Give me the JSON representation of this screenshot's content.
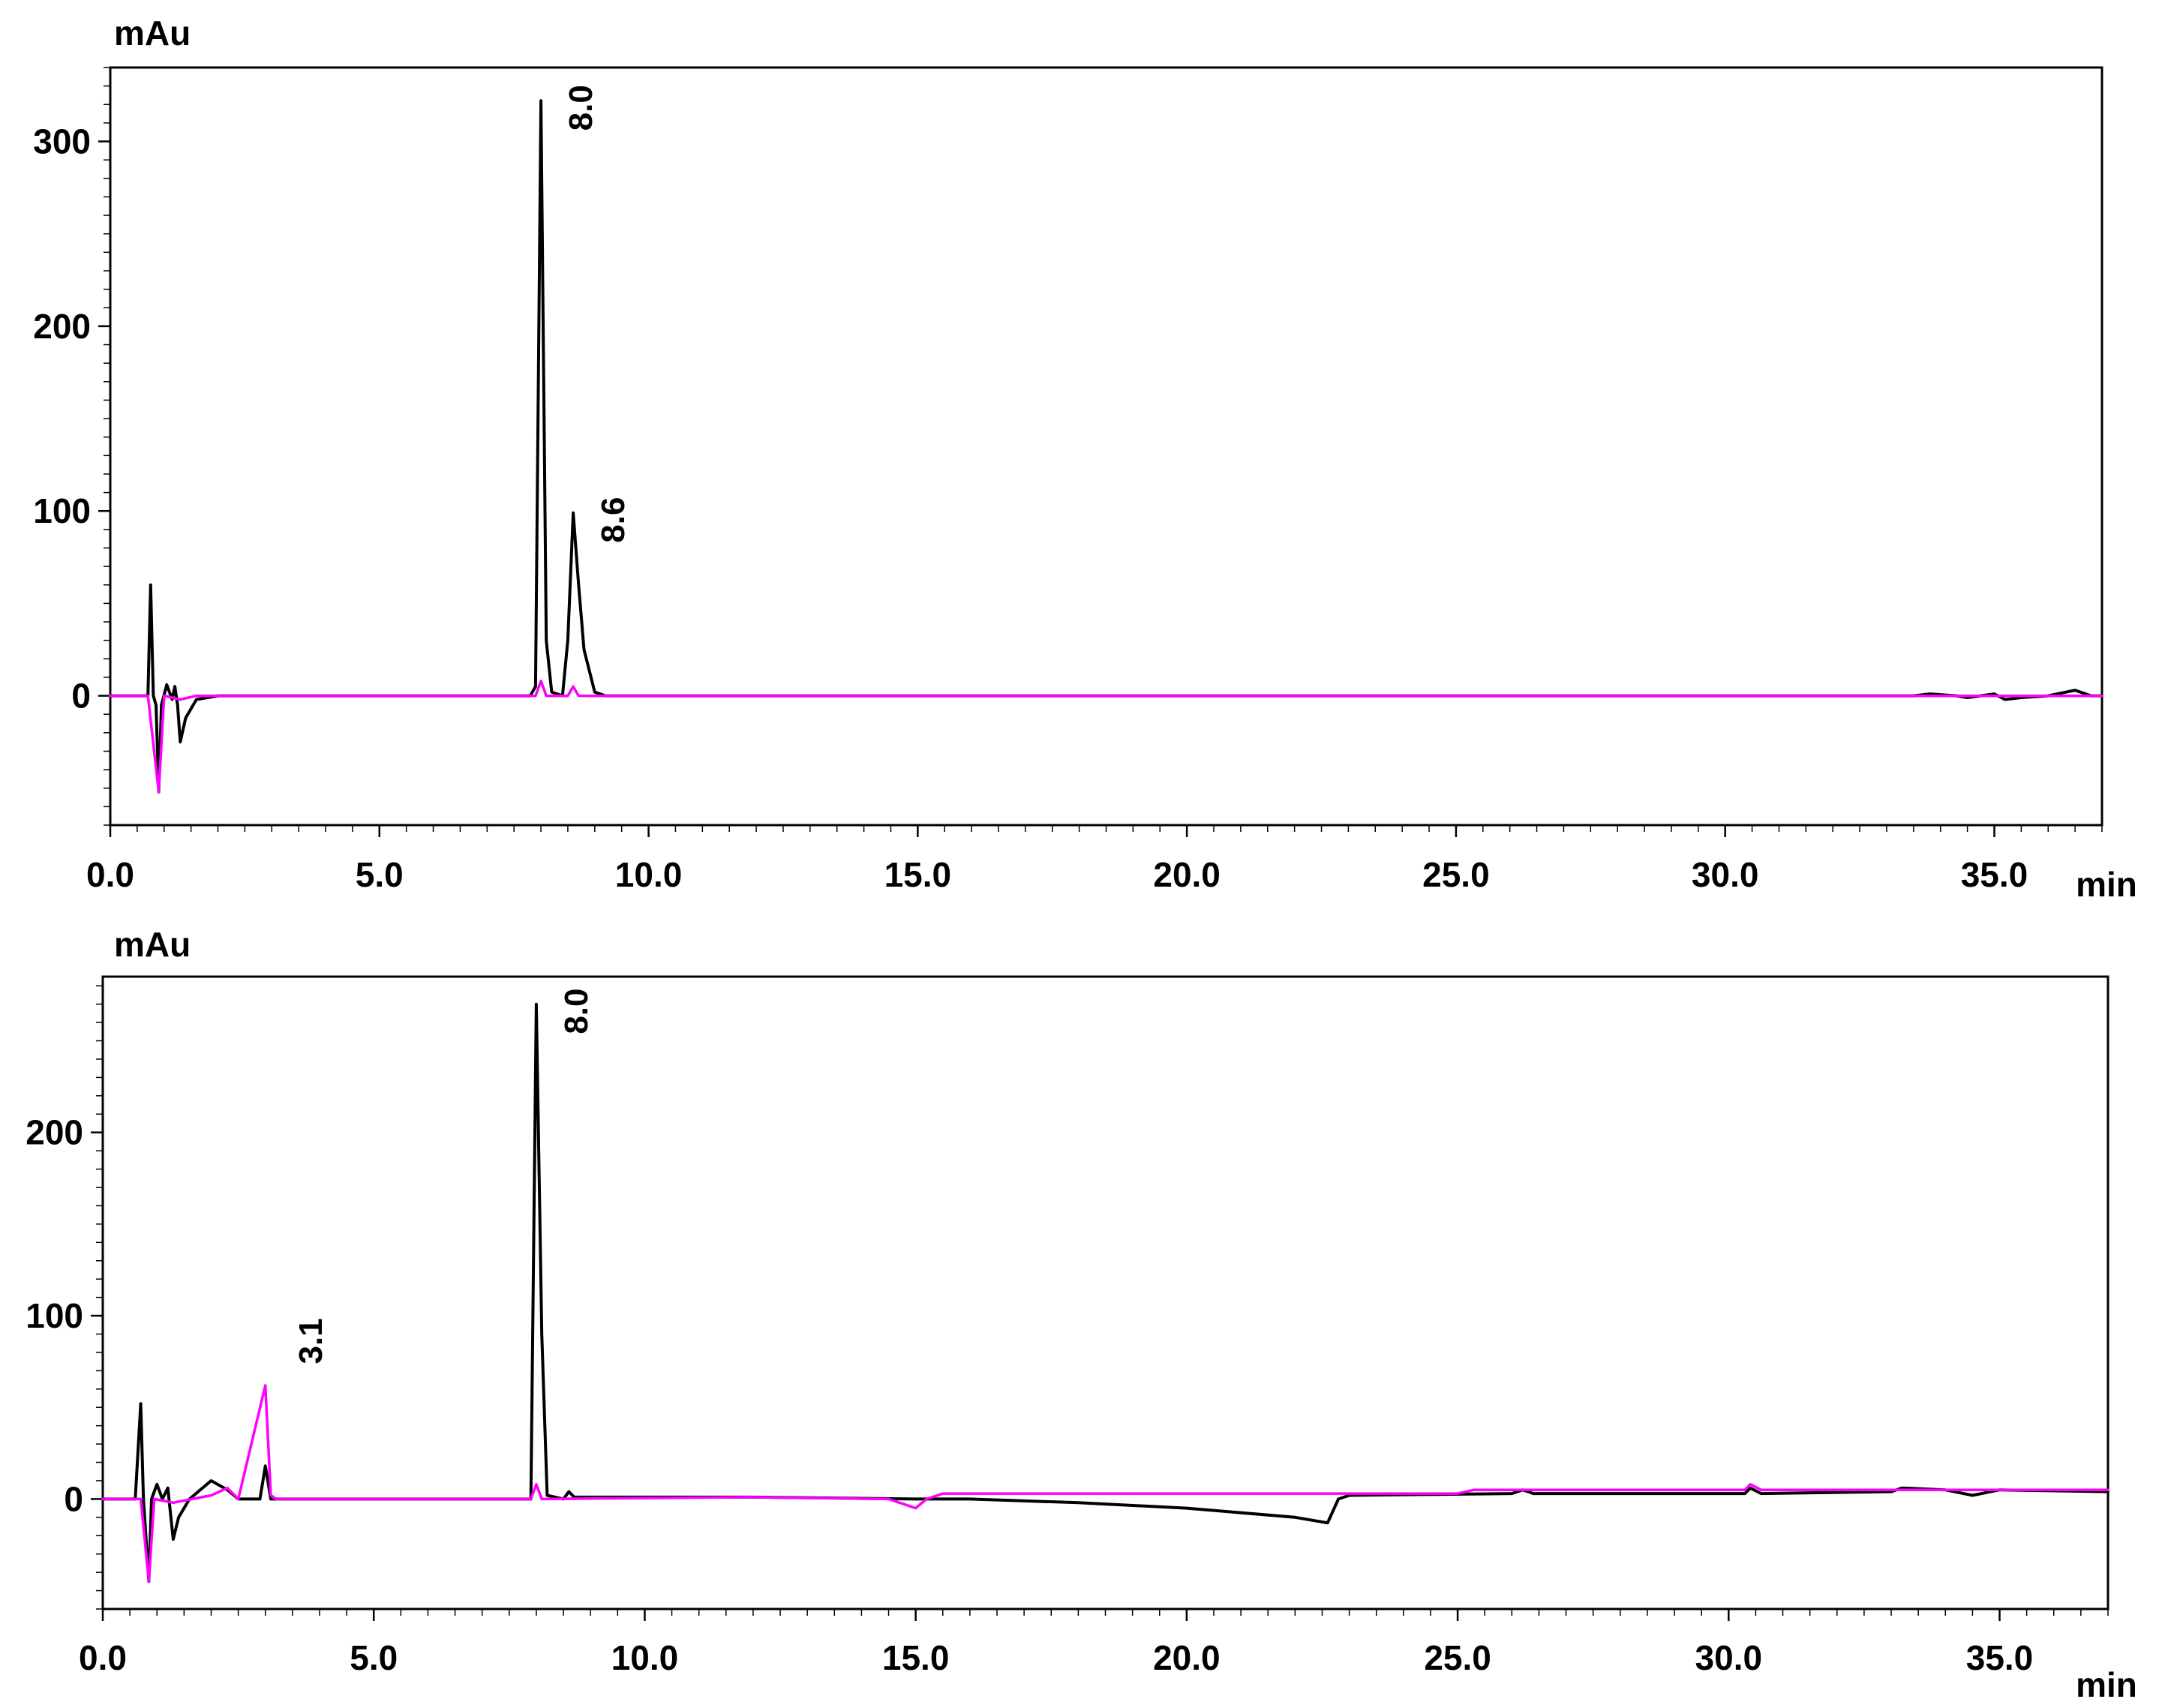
{
  "chart_data": [
    {
      "type": "line",
      "ylabel": "mAu",
      "xlabel": "min",
      "xlim": [
        0,
        37
      ],
      "ylim": [
        -70,
        340
      ],
      "xticks": [
        "0.0",
        "5.0",
        "10.0",
        "15.0",
        "20.0",
        "25.0",
        "30.0",
        "35.0"
      ],
      "yticks": [
        "0",
        "100",
        "200",
        "300"
      ],
      "peak_labels": [
        {
          "text": "8.0",
          "x": 8.0,
          "y": 322
        },
        {
          "text": "8.6",
          "x": 8.6,
          "y": 99
        }
      ],
      "series": [
        {
          "color": "#000000",
          "points": [
            [
              0.0,
              0
            ],
            [
              0.7,
              0
            ],
            [
              0.75,
              60
            ],
            [
              0.8,
              0
            ],
            [
              0.85,
              -5
            ],
            [
              0.9,
              -52
            ],
            [
              0.95,
              -5
            ],
            [
              1.05,
              6
            ],
            [
              1.15,
              -2
            ],
            [
              1.2,
              5
            ],
            [
              1.25,
              -5
            ],
            [
              1.3,
              -25
            ],
            [
              1.4,
              -12
            ],
            [
              1.6,
              -2
            ],
            [
              2.0,
              0
            ],
            [
              7.8,
              0
            ],
            [
              7.9,
              5
            ],
            [
              8.0,
              322
            ],
            [
              8.1,
              30
            ],
            [
              8.2,
              2
            ],
            [
              8.4,
              0
            ],
            [
              8.5,
              30
            ],
            [
              8.6,
              99
            ],
            [
              8.7,
              60
            ],
            [
              8.8,
              25
            ],
            [
              9.0,
              2
            ],
            [
              9.2,
              0
            ],
            [
              33.5,
              0
            ],
            [
              33.8,
              1
            ],
            [
              34.3,
              0
            ],
            [
              34.5,
              -1
            ],
            [
              35.0,
              1
            ],
            [
              35.2,
              -2
            ],
            [
              35.5,
              -1
            ],
            [
              36.0,
              0
            ],
            [
              36.5,
              3
            ],
            [
              36.8,
              0
            ],
            [
              37.0,
              0
            ]
          ]
        },
        {
          "color": "#ff00ff",
          "points": [
            [
              0.0,
              0
            ],
            [
              0.7,
              0
            ],
            [
              0.9,
              -52
            ],
            [
              1.0,
              0
            ],
            [
              1.3,
              -2
            ],
            [
              1.6,
              0
            ],
            [
              7.9,
              0
            ],
            [
              8.0,
              8
            ],
            [
              8.1,
              0
            ],
            [
              8.5,
              0
            ],
            [
              8.6,
              5
            ],
            [
              8.7,
              0
            ],
            [
              37.0,
              0
            ]
          ]
        }
      ]
    },
    {
      "type": "line",
      "ylabel": "mAu",
      "xlabel": "min",
      "xlim": [
        0,
        37
      ],
      "ylim": [
        -60,
        285
      ],
      "xticks": [
        "0.0",
        "5.0",
        "10.0",
        "15.0",
        "20.0",
        "25.0",
        "30.0",
        "35.0"
      ],
      "yticks": [
        "0",
        "100",
        "200"
      ],
      "peak_labels": [
        {
          "text": "3.1",
          "x": 3.1,
          "y": 90
        },
        {
          "text": "8.0",
          "x": 8.0,
          "y": 270
        }
      ],
      "series": [
        {
          "color": "#000000",
          "points": [
            [
              0.0,
              0
            ],
            [
              0.6,
              0
            ],
            [
              0.7,
              52
            ],
            [
              0.75,
              0
            ],
            [
              0.85,
              -45
            ],
            [
              0.9,
              0
            ],
            [
              1.0,
              8
            ],
            [
              1.1,
              0
            ],
            [
              1.2,
              6
            ],
            [
              1.3,
              -22
            ],
            [
              1.4,
              -10
            ],
            [
              1.6,
              0
            ],
            [
              1.8,
              5
            ],
            [
              2.0,
              10
            ],
            [
              2.3,
              5
            ],
            [
              2.5,
              0
            ],
            [
              2.9,
              0
            ],
            [
              3.0,
              18
            ],
            [
              3.1,
              0
            ],
            [
              3.5,
              0
            ],
            [
              7.9,
              0
            ],
            [
              8.0,
              270
            ],
            [
              8.1,
              90
            ],
            [
              8.2,
              2
            ],
            [
              8.5,
              0
            ],
            [
              8.6,
              4
            ],
            [
              8.7,
              1
            ],
            [
              12.0,
              1
            ],
            [
              15.0,
              0
            ],
            [
              16.0,
              0
            ],
            [
              18.0,
              -2
            ],
            [
              20.0,
              -5
            ],
            [
              22.0,
              -10
            ],
            [
              22.6,
              -13
            ],
            [
              22.8,
              0
            ],
            [
              23.0,
              2
            ],
            [
              26.0,
              3
            ],
            [
              26.2,
              5
            ],
            [
              26.4,
              3
            ],
            [
              30.3,
              3
            ],
            [
              30.4,
              6
            ],
            [
              30.6,
              3
            ],
            [
              33.0,
              4
            ],
            [
              33.2,
              6
            ],
            [
              34.0,
              5
            ],
            [
              34.5,
              2
            ],
            [
              35.0,
              5
            ],
            [
              37.0,
              4
            ]
          ]
        },
        {
          "color": "#ff00ff",
          "points": [
            [
              0.0,
              0
            ],
            [
              0.7,
              0
            ],
            [
              0.85,
              -45
            ],
            [
              0.95,
              0
            ],
            [
              1.3,
              -2
            ],
            [
              2.0,
              2
            ],
            [
              2.3,
              6
            ],
            [
              2.5,
              0
            ],
            [
              3.0,
              62
            ],
            [
              3.1,
              2
            ],
            [
              3.2,
              0
            ],
            [
              7.9,
              0
            ],
            [
              8.0,
              8
            ],
            [
              8.1,
              0
            ],
            [
              12.0,
              1
            ],
            [
              14.5,
              0
            ],
            [
              14.8,
              -3
            ],
            [
              15.0,
              -5
            ],
            [
              15.2,
              0
            ],
            [
              15.5,
              3
            ],
            [
              25.0,
              3
            ],
            [
              25.3,
              5
            ],
            [
              30.3,
              5
            ],
            [
              30.4,
              8
            ],
            [
              30.6,
              5
            ],
            [
              37.0,
              5
            ]
          ]
        }
      ]
    }
  ]
}
